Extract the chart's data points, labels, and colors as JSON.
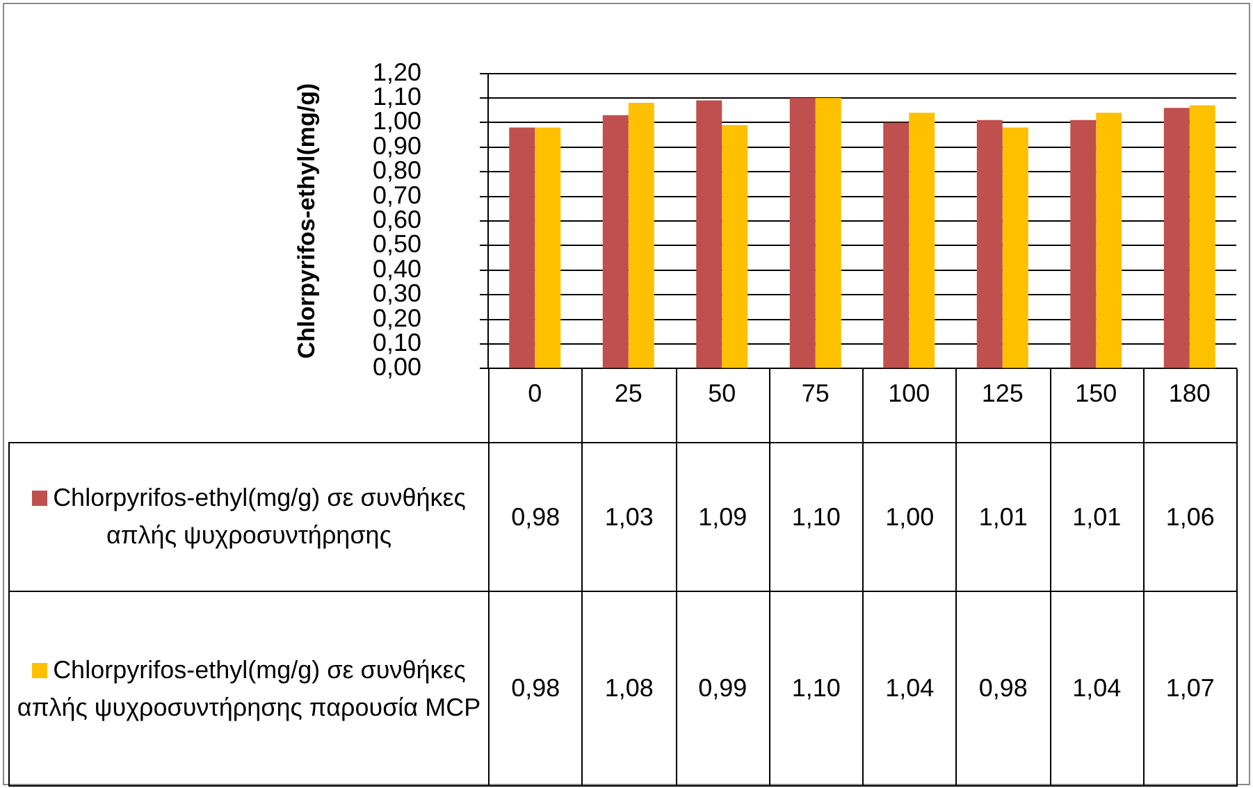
{
  "chart_data": {
    "type": "bar",
    "ylabel": "Chlorpyrifos-ethyl(mg/g)",
    "categories": [
      "0",
      "25",
      "50",
      "75",
      "100",
      "125",
      "150",
      "180"
    ],
    "series": [
      {
        "name": "Chlorpyrifos-ethyl(mg/g) σε συνθήκες απλής ψυχροσυντήρησης",
        "color": "#c0504d",
        "values": [
          0.98,
          1.03,
          1.09,
          1.1,
          1.0,
          1.01,
          1.01,
          1.06
        ],
        "value_labels": [
          "0,98",
          "1,03",
          "1,09",
          "1,10",
          "1,00",
          "1,01",
          "1,01",
          "1,06"
        ]
      },
      {
        "name": "Chlorpyrifos-ethyl(mg/g) σε συνθήκες απλής ψυχροσυντήρησης παρουσία MCP",
        "color": "#ffc000",
        "values": [
          0.98,
          1.08,
          0.99,
          1.1,
          1.04,
          0.98,
          1.04,
          1.07
        ],
        "value_labels": [
          "0,98",
          "1,08",
          "0,99",
          "1,10",
          "1,04",
          "0,98",
          "1,04",
          "1,07"
        ]
      }
    ],
    "ylim": [
      0,
      1.2
    ],
    "yticks": [
      {
        "value": 0,
        "label": "0,00"
      },
      {
        "value": 0.1,
        "label": "0,10"
      },
      {
        "value": 0.2,
        "label": "0,20"
      },
      {
        "value": 0.3,
        "label": "0,30"
      },
      {
        "value": 0.4,
        "label": "0,40"
      },
      {
        "value": 0.5,
        "label": "0,50"
      },
      {
        "value": 0.6,
        "label": "0,60"
      },
      {
        "value": 0.7,
        "label": "0,70"
      },
      {
        "value": 0.8,
        "label": "0,80"
      },
      {
        "value": 0.9,
        "label": "0,90"
      },
      {
        "value": 1,
        "label": "1,00"
      },
      {
        "value": 1.1,
        "label": "1,10"
      },
      {
        "value": 1.2,
        "label": "1,20"
      }
    ],
    "grid": "y",
    "legend": "bottom"
  }
}
